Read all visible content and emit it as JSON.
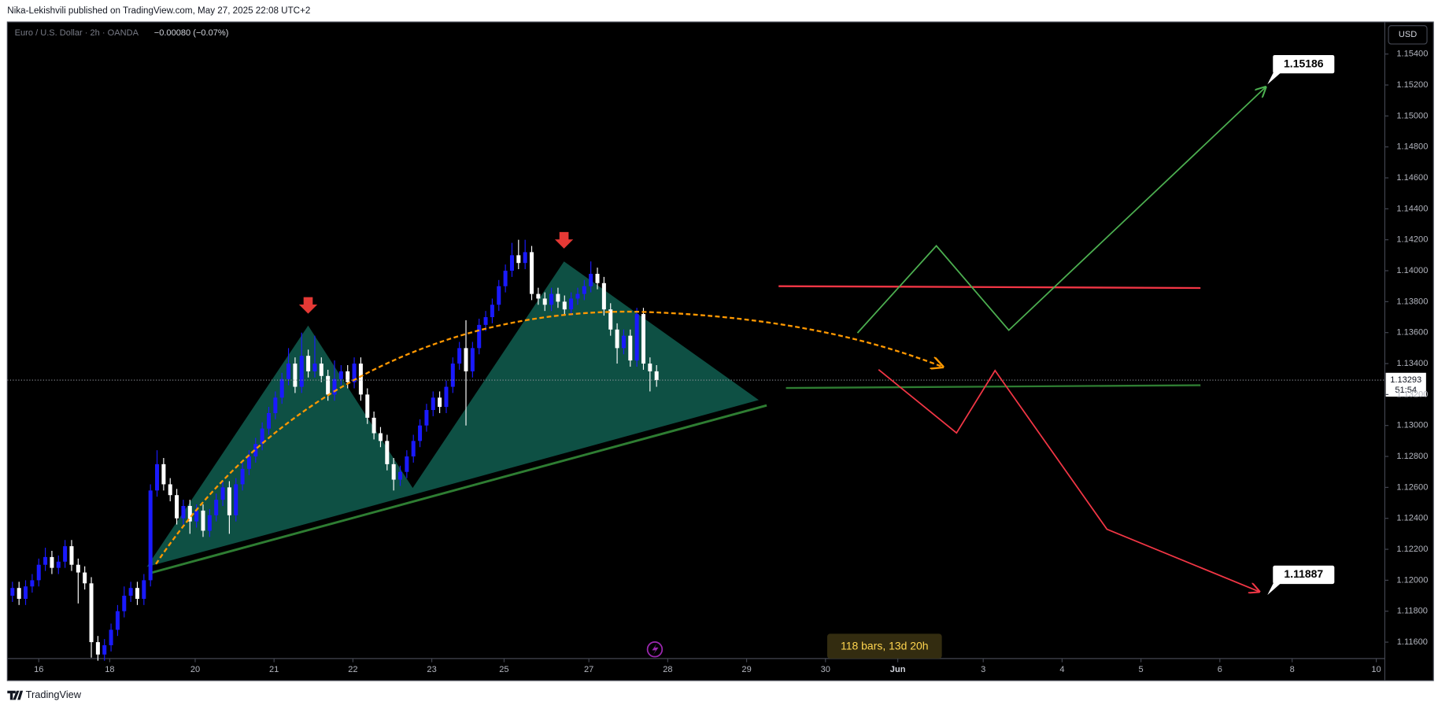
{
  "header": {
    "published": "Nika-Lekishvili published on TradingView.com, May 27, 2025 22:08 UTC+2"
  },
  "footer": {
    "brand": "TradingView"
  },
  "chart_data": {
    "type": "candlestick",
    "title": "Euro / U.S. Dollar · 2h · OANDA",
    "change": "−0.00080 (−0.07%)",
    "currency": "USD",
    "up_color": "#1a1aff",
    "down_color": "#ffffff",
    "grid": false,
    "ylim": [
      1.11494,
      1.15607
    ],
    "yticks": [
      {
        "value": 1.116,
        "label": "1.11600"
      },
      {
        "value": 1.118,
        "label": "1.11800"
      },
      {
        "value": 1.12,
        "label": "1.12000"
      },
      {
        "value": 1.122,
        "label": "1.12200"
      },
      {
        "value": 1.124,
        "label": "1.12400"
      },
      {
        "value": 1.126,
        "label": "1.12600"
      },
      {
        "value": 1.128,
        "label": "1.12800"
      },
      {
        "value": 1.13,
        "label": "1.13000"
      },
      {
        "value": 1.132,
        "label": "1.13200"
      },
      {
        "value": 1.134,
        "label": "1.13400"
      },
      {
        "value": 1.136,
        "label": "1.13600"
      },
      {
        "value": 1.138,
        "label": "1.13800"
      },
      {
        "value": 1.14,
        "label": "1.14000"
      },
      {
        "value": 1.142,
        "label": "1.14200"
      },
      {
        "value": 1.144,
        "label": "1.14400"
      },
      {
        "value": 1.146,
        "label": "1.14600"
      },
      {
        "value": 1.148,
        "label": "1.14800"
      },
      {
        "value": 1.15,
        "label": "1.15000"
      },
      {
        "value": 1.152,
        "label": "1.15200"
      },
      {
        "value": 1.154,
        "label": "1.15400"
      }
    ],
    "xlim": [
      0,
      209.3
    ],
    "xticks": [
      {
        "value": 4.5,
        "label": "16"
      },
      {
        "value": 15.3,
        "label": "18"
      },
      {
        "value": 28.3,
        "label": "20"
      },
      {
        "value": 40.3,
        "label": "21"
      },
      {
        "value": 52.3,
        "label": "22"
      },
      {
        "value": 64.3,
        "label": "23"
      },
      {
        "value": 75.3,
        "label": "25"
      },
      {
        "value": 88.2,
        "label": "27"
      },
      {
        "value": 100.2,
        "label": "28"
      },
      {
        "value": 112.2,
        "label": "29"
      },
      {
        "value": 124.2,
        "label": "30"
      },
      {
        "value": 135.2,
        "label": "Jun"
      },
      {
        "value": 148.2,
        "label": "3"
      },
      {
        "value": 160.2,
        "label": "4"
      },
      {
        "value": 172.2,
        "label": "5"
      },
      {
        "value": 184.2,
        "label": "6"
      },
      {
        "value": 195.2,
        "label": "8"
      },
      {
        "value": 208.0,
        "label": "10"
      }
    ],
    "candles": [
      [
        1.119,
        1.1199,
        1.1186,
        1.1195
      ],
      [
        1.1195,
        1.1199,
        1.1184,
        1.1188
      ],
      [
        1.1188,
        1.12,
        1.1184,
        1.1196
      ],
      [
        1.1196,
        1.1204,
        1.1192,
        1.12
      ],
      [
        1.12,
        1.1214,
        1.1196,
        1.121
      ],
      [
        1.121,
        1.1221,
        1.1206,
        1.1215
      ],
      [
        1.1215,
        1.1219,
        1.1204,
        1.1208
      ],
      [
        1.1208,
        1.1216,
        1.1204,
        1.1212
      ],
      [
        1.1212,
        1.1226,
        1.1208,
        1.1222
      ],
      [
        1.1222,
        1.1226,
        1.1206,
        1.121
      ],
      [
        1.121,
        1.1214,
        1.1185,
        1.1205
      ],
      [
        1.1205,
        1.1209,
        1.1194,
        1.1198
      ],
      [
        1.1198,
        1.1202,
        1.115,
        1.116
      ],
      [
        1.116,
        1.1164,
        1.1148,
        1.1152
      ],
      [
        1.1152,
        1.1162,
        1.1148,
        1.1158
      ],
      [
        1.1158,
        1.1172,
        1.1154,
        1.1168
      ],
      [
        1.1168,
        1.1184,
        1.1164,
        1.118
      ],
      [
        1.118,
        1.1196,
        1.1176,
        1.119
      ],
      [
        1.119,
        1.1199,
        1.1186,
        1.1195
      ],
      [
        1.1195,
        1.1199,
        1.1184,
        1.1188
      ],
      [
        1.1188,
        1.1204,
        1.1184,
        1.12
      ],
      [
        1.12,
        1.1262,
        1.1196,
        1.1258
      ],
      [
        1.1258,
        1.1284,
        1.1254,
        1.1275
      ],
      [
        1.1275,
        1.1279,
        1.1258,
        1.1262
      ],
      [
        1.1262,
        1.1266,
        1.1251,
        1.1255
      ],
      [
        1.1255,
        1.1259,
        1.1236,
        1.124
      ],
      [
        1.124,
        1.1252,
        1.1236,
        1.1248
      ],
      [
        1.1248,
        1.1252,
        1.123,
        1.1238
      ],
      [
        1.1238,
        1.1249,
        1.1234,
        1.1245
      ],
      [
        1.1245,
        1.1249,
        1.1228,
        1.1232
      ],
      [
        1.1232,
        1.1246,
        1.1228,
        1.1242
      ],
      [
        1.1242,
        1.1256,
        1.1238,
        1.1252
      ],
      [
        1.1252,
        1.1264,
        1.1248,
        1.126
      ],
      [
        1.126,
        1.1264,
        1.123,
        1.1242
      ],
      [
        1.1242,
        1.1266,
        1.1238,
        1.1262
      ],
      [
        1.1262,
        1.1276,
        1.1258,
        1.1272
      ],
      [
        1.1272,
        1.1284,
        1.1268,
        1.128
      ],
      [
        1.128,
        1.1292,
        1.1276,
        1.1288
      ],
      [
        1.1288,
        1.1302,
        1.1284,
        1.1298
      ],
      [
        1.1298,
        1.1312,
        1.1294,
        1.1308
      ],
      [
        1.1308,
        1.1322,
        1.1304,
        1.1318
      ],
      [
        1.1318,
        1.1334,
        1.1314,
        1.133
      ],
      [
        1.133,
        1.135,
        1.1326,
        1.134
      ],
      [
        1.134,
        1.1344,
        1.1321,
        1.1325
      ],
      [
        1.1325,
        1.136,
        1.1321,
        1.1345
      ],
      [
        1.1345,
        1.1349,
        1.1331,
        1.1335
      ],
      [
        1.1335,
        1.1358,
        1.1331,
        1.134
      ],
      [
        1.134,
        1.1344,
        1.1328,
        1.1332
      ],
      [
        1.1332,
        1.1336,
        1.1316,
        1.132
      ],
      [
        1.132,
        1.1342,
        1.1316,
        1.133
      ],
      [
        1.133,
        1.1339,
        1.1326,
        1.1335
      ],
      [
        1.1335,
        1.1339,
        1.1324,
        1.1328
      ],
      [
        1.1328,
        1.1344,
        1.1324,
        1.134
      ],
      [
        1.134,
        1.1344,
        1.1316,
        1.132
      ],
      [
        1.132,
        1.1324,
        1.1301,
        1.1305
      ],
      [
        1.1305,
        1.1309,
        1.1291,
        1.1295
      ],
      [
        1.1295,
        1.1299,
        1.1286,
        1.129
      ],
      [
        1.129,
        1.1294,
        1.1271,
        1.1275
      ],
      [
        1.1275,
        1.1279,
        1.1258,
        1.1265
      ],
      [
        1.1265,
        1.1274,
        1.1261,
        1.127
      ],
      [
        1.127,
        1.1284,
        1.1266,
        1.128
      ],
      [
        1.128,
        1.1294,
        1.1276,
        1.129
      ],
      [
        1.129,
        1.1304,
        1.1286,
        1.13
      ],
      [
        1.13,
        1.1314,
        1.1296,
        1.131
      ],
      [
        1.131,
        1.1322,
        1.1306,
        1.1318
      ],
      [
        1.1318,
        1.1322,
        1.1308,
        1.1312
      ],
      [
        1.1312,
        1.1329,
        1.1308,
        1.1325
      ],
      [
        1.1325,
        1.1344,
        1.1321,
        1.134
      ],
      [
        1.134,
        1.1354,
        1.1336,
        1.135
      ],
      [
        1.135,
        1.1368,
        1.13,
        1.1335
      ],
      [
        1.1335,
        1.1354,
        1.1331,
        1.135
      ],
      [
        1.135,
        1.1369,
        1.1346,
        1.1365
      ],
      [
        1.1365,
        1.1374,
        1.1361,
        1.137
      ],
      [
        1.137,
        1.1382,
        1.1366,
        1.1378
      ],
      [
        1.1378,
        1.1394,
        1.1374,
        1.139
      ],
      [
        1.139,
        1.1404,
        1.1386,
        1.14
      ],
      [
        1.14,
        1.1418,
        1.1396,
        1.141
      ],
      [
        1.141,
        1.142,
        1.1401,
        1.1405
      ],
      [
        1.1405,
        1.142,
        1.1401,
        1.1412
      ],
      [
        1.1412,
        1.1416,
        1.1381,
        1.1385
      ],
      [
        1.1385,
        1.1389,
        1.1378,
        1.1382
      ],
      [
        1.1382,
        1.1386,
        1.1374,
        1.1378
      ],
      [
        1.1378,
        1.1389,
        1.1374,
        1.1385
      ],
      [
        1.1385,
        1.1389,
        1.1376,
        1.138
      ],
      [
        1.138,
        1.1384,
        1.1371,
        1.1375
      ],
      [
        1.1375,
        1.1386,
        1.1371,
        1.1382
      ],
      [
        1.1382,
        1.1389,
        1.1378,
        1.1385
      ],
      [
        1.1385,
        1.1394,
        1.1381,
        1.139
      ],
      [
        1.139,
        1.1406,
        1.1386,
        1.1398
      ],
      [
        1.1398,
        1.1402,
        1.1388,
        1.1392
      ],
      [
        1.1392,
        1.1396,
        1.1371,
        1.1375
      ],
      [
        1.1375,
        1.1379,
        1.1358,
        1.1362
      ],
      [
        1.1362,
        1.1366,
        1.134,
        1.135
      ],
      [
        1.135,
        1.1362,
        1.1346,
        1.1358
      ],
      [
        1.1358,
        1.1362,
        1.1338,
        1.1342
      ],
      [
        1.1342,
        1.1376,
        1.1338,
        1.1372
      ],
      [
        1.1372,
        1.1376,
        1.1336,
        1.134
      ],
      [
        1.134,
        1.1344,
        1.1322,
        1.1335
      ],
      [
        1.1335,
        1.1339,
        1.1325,
        1.13293
      ]
    ],
    "last_price": 1.13293,
    "countdown": "51:54",
    "targets": [
      1.15186,
      1.11887
    ],
    "range_label": "118 bars, 13d 20h"
  }
}
